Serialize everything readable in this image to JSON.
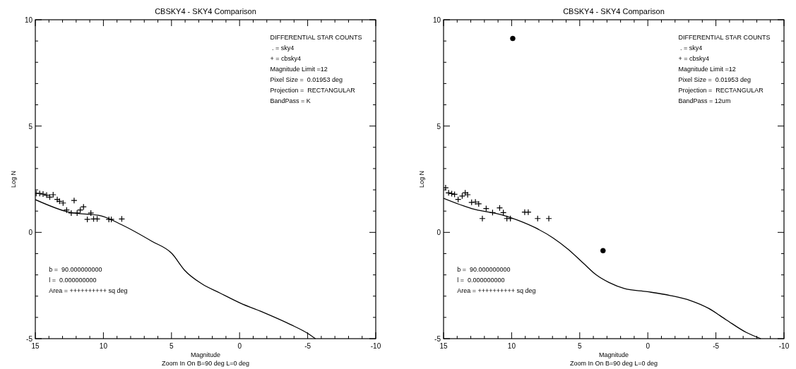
{
  "chart_data": [
    {
      "type": "scatter",
      "title": "CBSKY4 - SKY4 Comparison",
      "xlabel": "Magnitude",
      "ylabel": "Log N",
      "xlim": [
        15,
        -10
      ],
      "xticks": [
        15,
        10,
        5,
        0,
        -5,
        -10
      ],
      "ylim": [
        -5,
        10
      ],
      "yticks": [
        -5,
        0,
        5,
        10
      ],
      "grid": false,
      "annotations": [
        "DIFFERENTIAL STAR COUNTS\n . = sky4\n+ = cbsky4\nMagnitude Limit =12\nPixel Size =  0.01953 deg\nProjection =  RECTANGULAR\nBandPass = K",
        "b =  90.000000000\nl =  0.000000000\nArea = ++++++++++ sq deg",
        "Zoom In On B=90 deg L=0 deg"
      ],
      "series": [
        {
          "type": "line",
          "color": "#000000",
          "marker": "none",
          "line_style": "solid",
          "x": [
            15,
            12.54,
            10.14,
            8.66,
            6.44,
            4.96,
            4.04,
            2.75,
            1.45,
            -0.03,
            -1.88,
            -3.73,
            -5.0,
            -5.57
          ],
          "values": [
            1.54,
            0.95,
            0.77,
            0.36,
            -0.42,
            -1.0,
            -1.78,
            -2.43,
            -2.85,
            -3.32,
            -3.8,
            -4.33,
            -4.75,
            -5.0
          ]
        },
        {
          "color": "#000000",
          "marker": "cross",
          "x": [
            14.94,
            14.68,
            14.43,
            14.17,
            13.94,
            13.69,
            13.39,
            13.22,
            12.96,
            12.7,
            12.36,
            12.15,
            11.93,
            11.7,
            11.46,
            11.18,
            10.92,
            10.72,
            10.46,
            9.6,
            9.42,
            8.65
          ],
          "values": [
            1.83,
            1.83,
            1.8,
            1.75,
            1.66,
            1.77,
            1.55,
            1.46,
            1.38,
            1.05,
            0.91,
            1.5,
            0.91,
            1.05,
            1.2,
            0.61,
            0.91,
            0.63,
            0.63,
            0.61,
            0.61,
            0.63
          ]
        }
      ]
    },
    {
      "type": "scatter",
      "title": "CBSKY4 - SKY4 Comparison",
      "xlabel": "Magnitude",
      "ylabel": "Log N",
      "xlim": [
        15,
        -10
      ],
      "xticks": [
        15,
        10,
        5,
        0,
        -5,
        -10
      ],
      "ylim": [
        -5,
        10
      ],
      "yticks": [
        -5,
        0,
        5,
        10
      ],
      "grid": false,
      "annotations": [
        "DIFFERENTIAL STAR COUNTS\n . = sky4\n+ = cbsky4\nMagnitude Limit =12\nPixel Size =  0.01953 deg\nProjection =  RECTANGULAR\nBandPass = 12um",
        "b =  90.000000000\nl =  0.000000000\nArea = ++++++++++ sq deg",
        "Zoom In On B=90 deg L=0 deg"
      ],
      "series": [
        {
          "type": "line",
          "color": "#000000",
          "marker": "none",
          "line_style": "solid",
          "x": [
            15,
            12.94,
            10.7,
            9.58,
            8.27,
            6.96,
            5.84,
            4.72,
            3.79,
            2.85,
            1.73,
            0.04,
            -1.64,
            -3.14,
            -4.45,
            -5.75,
            -7.24,
            -8.3
          ],
          "values": [
            1.6,
            1.12,
            0.82,
            0.58,
            0.22,
            -0.26,
            -0.8,
            -1.46,
            -2.0,
            -2.36,
            -2.64,
            -2.79,
            -2.97,
            -3.21,
            -3.57,
            -4.11,
            -4.71,
            -5.0
          ]
        },
        {
          "color": "#000000",
          "marker": "cross",
          "x": [
            14.85,
            14.63,
            14.4,
            14.19,
            13.93,
            13.63,
            13.41,
            13.23,
            12.94,
            12.66,
            12.42,
            12.15,
            11.87,
            11.4,
            10.88,
            10.61,
            10.35,
            10.09,
            9.04,
            8.78,
            8.09,
            7.27
          ],
          "values": [
            2.1,
            1.86,
            1.82,
            1.79,
            1.55,
            1.71,
            1.86,
            1.77,
            1.41,
            1.43,
            1.34,
            0.65,
            1.12,
            0.93,
            1.15,
            0.93,
            0.65,
            0.65,
            0.95,
            0.95,
            0.65,
            0.65
          ]
        },
        {
          "color": "#000000",
          "marker": "circle",
          "x": [
            9.92,
            3.29
          ],
          "values": [
            9.12,
            -0.86
          ]
        }
      ]
    }
  ]
}
